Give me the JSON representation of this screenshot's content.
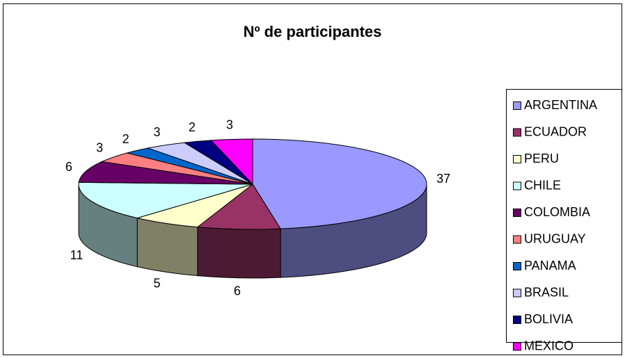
{
  "chart_data": {
    "type": "pie",
    "title": "Nº de participantes",
    "three_d": true,
    "legend": "right",
    "categories": [
      "ARGENTINA",
      "ECUADOR",
      "PERU",
      "CHILE",
      "COLOMBIA",
      "URUGUAY",
      "PANAMA",
      "BRASIL",
      "BOLIVIA",
      "MEXICO"
    ],
    "values": [
      37,
      6,
      5,
      11,
      6,
      3,
      2,
      3,
      2,
      3
    ],
    "colors": [
      "#9999ff",
      "#993366",
      "#ffffcc",
      "#ccffff",
      "#660066",
      "#ff8080",
      "#0066cc",
      "#ccccff",
      "#000080",
      "#ff00ff"
    ]
  }
}
